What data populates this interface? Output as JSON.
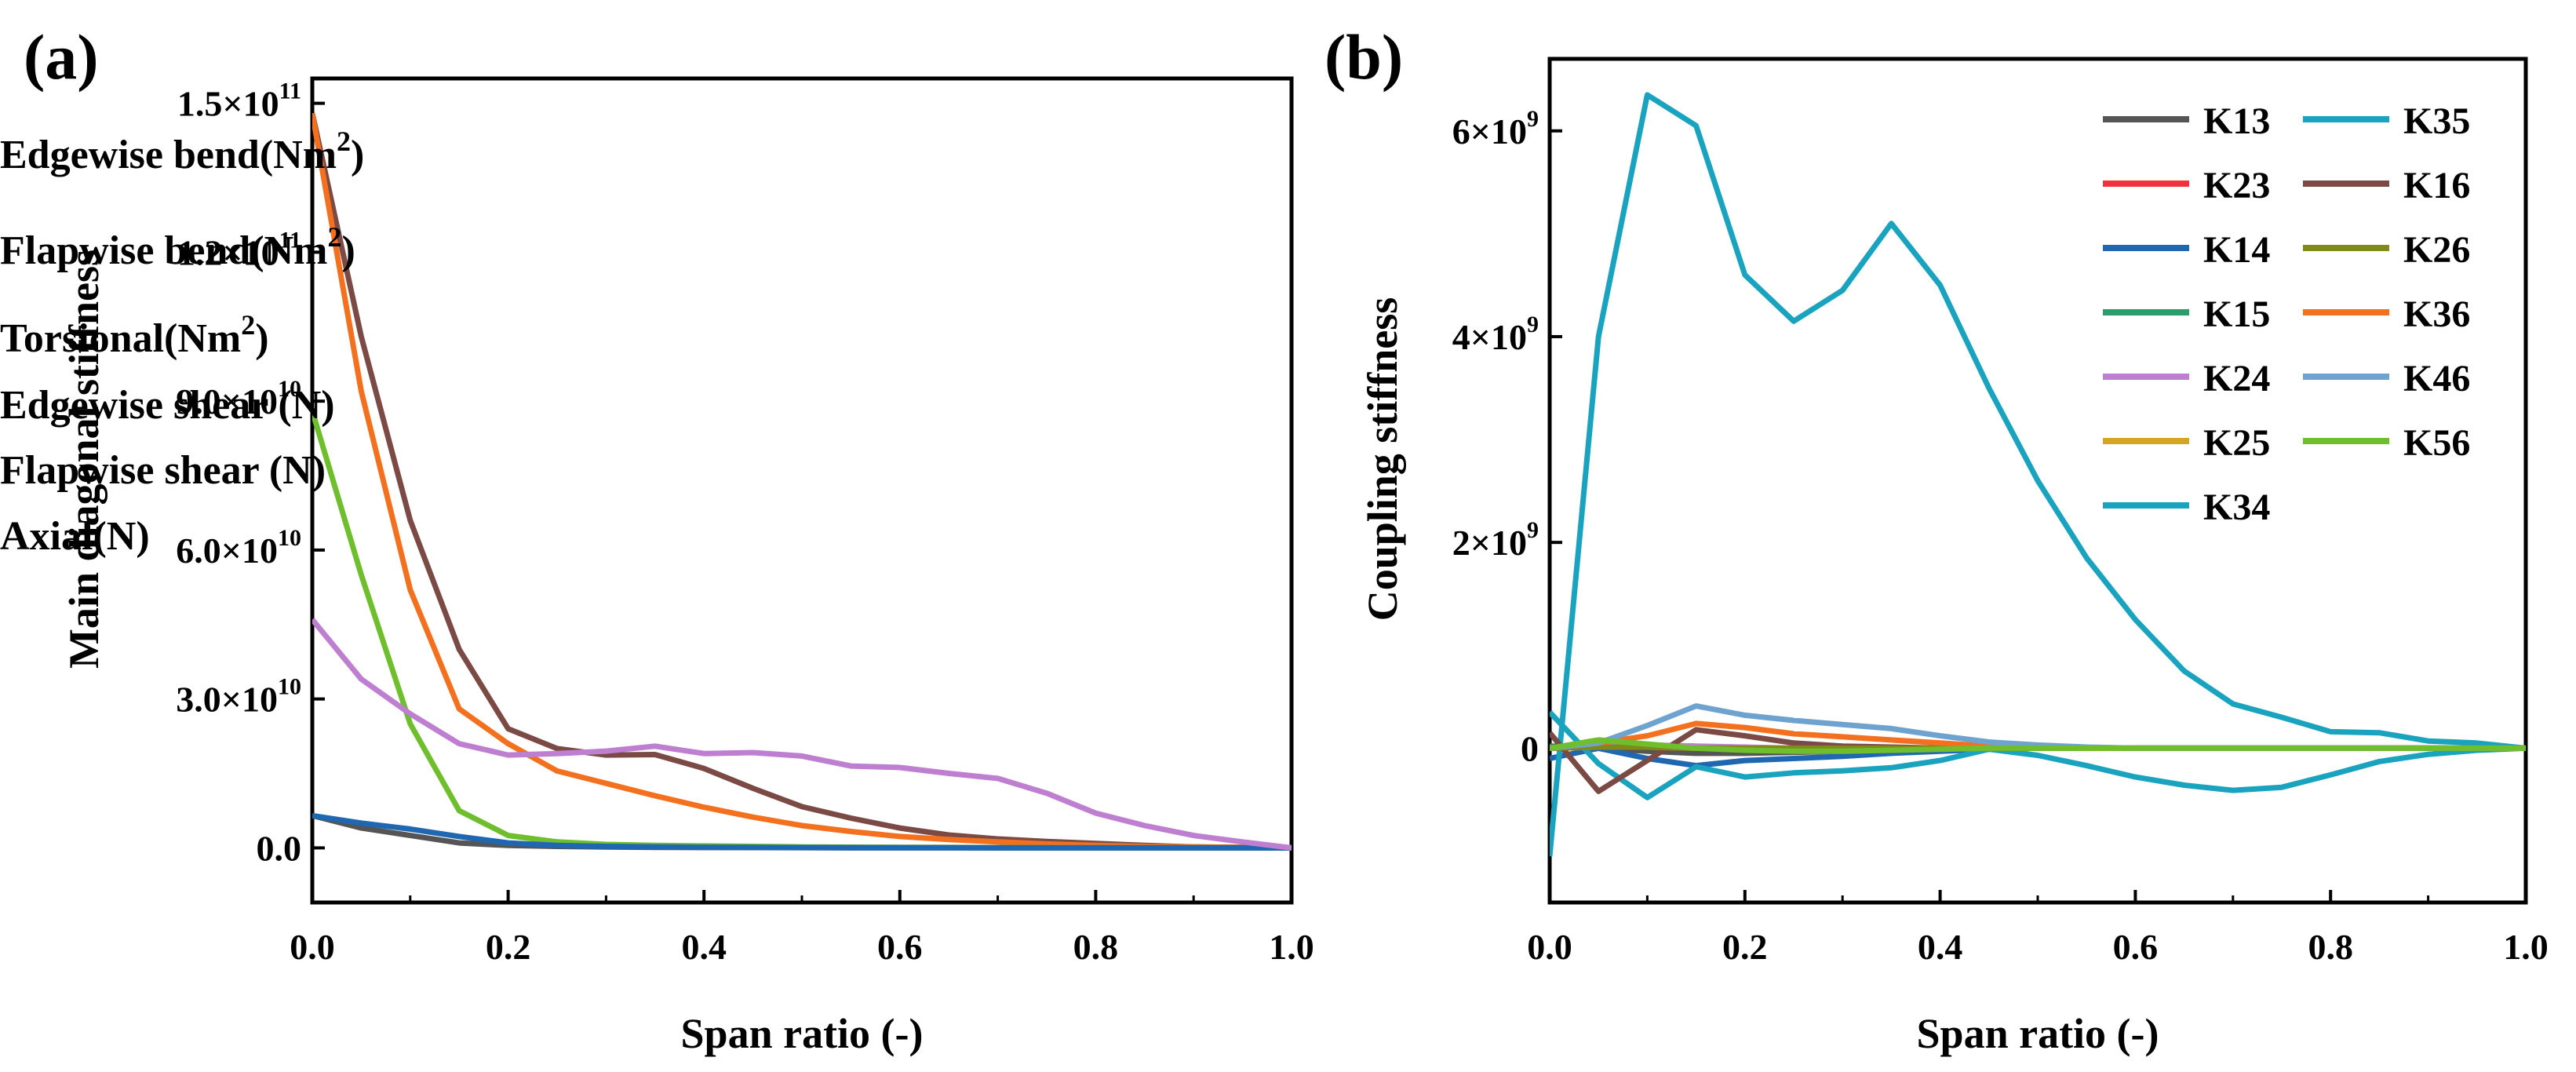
{
  "chart_data": [
    {
      "type": "line",
      "panel": "(a)",
      "xlabel": "Span ratio (-)",
      "ylabel": "Main diagonal stiffness",
      "xlim": [
        0,
        1.0
      ],
      "ylim": [
        -11000000000.0,
        155000000000.0
      ],
      "x_ticks": [
        "0.0",
        "0.2",
        "0.4",
        "0.6",
        "0.8",
        "1.0"
      ],
      "y_ticks": [
        {
          "value": 0,
          "base": "0.0",
          "exp": ""
        },
        {
          "value": 30000000000.0,
          "base": "3.0×10",
          "exp": "10"
        },
        {
          "value": 60000000000.0,
          "base": "6.0×10",
          "exp": "10"
        },
        {
          "value": 90000000000.0,
          "base": "9.0×10",
          "exp": "10"
        },
        {
          "value": 120000000000.0,
          "base": "1.2×10",
          "exp": "11"
        },
        {
          "value": 150000000000.0,
          "base": "1.5×10",
          "exp": "11"
        }
      ],
      "legend_position": "top-right",
      "x": [
        0,
        0.05,
        0.1,
        0.15,
        0.2,
        0.25,
        0.3,
        0.35,
        0.4,
        0.45,
        0.5,
        0.55,
        0.6,
        0.65,
        0.7,
        0.75,
        0.8,
        0.85,
        0.9,
        0.95,
        1.0
      ],
      "series": [
        {
          "name": "Edgewise bend(Nm",
          "sup": "2",
          "suffix": ")",
          "color": "#7b4a44",
          "values": [
            148000000000.0,
            103000000000.0,
            66000000000.0,
            40000000000.0,
            24000000000.0,
            20000000000.0,
            18700000000.0,
            18800000000.0,
            16000000000.0,
            12000000000.0,
            8300000000.0,
            6000000000.0,
            4000000000.0,
            2600000000.0,
            1800000000.0,
            1300000000.0,
            900000000.0,
            500000000.0,
            200000000.0,
            100000000.0,
            0
          ]
        },
        {
          "name": "Flapwise bend(Nm",
          "sup": "2",
          "suffix": ")",
          "color": "#f3701e",
          "values": [
            148000000000.0,
            92000000000.0,
            52000000000.0,
            28000000000.0,
            21000000000.0,
            15500000000.0,
            13000000000.0,
            10500000000.0,
            8200000000.0,
            6200000000.0,
            4500000000.0,
            3300000000.0,
            2300000000.0,
            1700000000.0,
            1200000000.0,
            800000000.0,
            500000000.0,
            300000000.0,
            200000000.0,
            100000000.0,
            0
          ]
        },
        {
          "name": "Torsional(Nm",
          "sup": "2",
          "suffix": ")",
          "color": "#6fbe2d",
          "values": [
            88000000000.0,
            55000000000.0,
            25000000000.0,
            7500000000.0,
            2500000000.0,
            1200000000.0,
            700000000.0,
            500000000.0,
            400000000.0,
            300000000.0,
            200000000.0,
            150000000.0,
            100000000.0,
            80000000.0,
            60000000.0,
            40000000.0,
            30000000.0,
            20000000.0,
            10000000.0,
            0,
            0
          ]
        },
        {
          "name": "Edgewise shear (N)",
          "sup": "",
          "suffix": "",
          "color": "#555555",
          "values": [
            6500000000.0,
            4000000000.0,
            2500000000.0,
            1000000000.0,
            500000000.0,
            300000000.0,
            200000000.0,
            100000000.0,
            80000000.0,
            60000000.0,
            50000000.0,
            40000000.0,
            30000000.0,
            20000000.0,
            10000000.0,
            0,
            0,
            0,
            0,
            0,
            0
          ]
        },
        {
          "name": "Flapwise shear (N)",
          "sup": "",
          "suffix": "",
          "color": "#1f67b1",
          "values": [
            6500000000.0,
            5000000000.0,
            3800000000.0,
            2300000000.0,
            1000000000.0,
            500000000.0,
            300000000.0,
            200000000.0,
            100000000.0,
            80000000.0,
            60000000.0,
            40000000.0,
            30000000.0,
            20000000.0,
            10000000.0,
            0,
            0,
            0,
            0,
            0,
            0
          ]
        },
        {
          "name": "Axial(N)",
          "sup": "",
          "suffix": "",
          "color": "#bf7fd0",
          "values": [
            46000000000.0,
            34000000000.0,
            27000000000.0,
            21000000000.0,
            18700000000.0,
            19000000000.0,
            19500000000.0,
            20500000000.0,
            19000000000.0,
            19200000000.0,
            18500000000.0,
            16500000000.0,
            16200000000.0,
            15000000000.0,
            14000000000.0,
            11000000000.0,
            7000000000.0,
            4500000000.0,
            2500000000.0,
            1200000000.0,
            0
          ]
        }
      ]
    },
    {
      "type": "line",
      "panel": "(b)",
      "xlabel": "Span ratio (-)",
      "ylabel": "Coupling stiffness",
      "xlim": [
        0,
        1.0
      ],
      "ylim": [
        -1500000000.0,
        6700000000.0
      ],
      "x_ticks": [
        "0.0",
        "0.2",
        "0.4",
        "0.6",
        "0.8",
        "1.0"
      ],
      "y_ticks": [
        {
          "value": 0,
          "base": "0",
          "exp": ""
        },
        {
          "value": 2000000000.0,
          "base": "2×10",
          "exp": "9"
        },
        {
          "value": 4000000000.0,
          "base": "4×10",
          "exp": "9"
        },
        {
          "value": 6000000000.0,
          "base": "6×10",
          "exp": "9"
        }
      ],
      "legend_position": "top-right",
      "x": [
        0,
        0.05,
        0.1,
        0.15,
        0.2,
        0.25,
        0.3,
        0.35,
        0.4,
        0.45,
        0.5,
        0.55,
        0.6,
        0.65,
        0.7,
        0.75,
        0.8,
        0.85,
        0.9,
        0.95,
        1.0
      ],
      "series": [
        {
          "name": "K13",
          "color": "#555555",
          "values": [
            20000000.0,
            0,
            -30000000.0,
            -50000000.0,
            -50000000.0,
            -40000000.0,
            -30000000.0,
            -20000000.0,
            -10000000.0,
            0,
            0,
            0,
            0,
            0,
            0,
            0,
            0,
            0,
            0,
            0,
            0
          ]
        },
        {
          "name": "K23",
          "color": "#f0323c",
          "values": [
            0,
            10000000.0,
            20000000.0,
            10000000.0,
            0,
            0,
            0,
            0,
            0,
            0,
            0,
            0,
            0,
            0,
            0,
            0,
            0,
            0,
            0,
            0,
            0
          ]
        },
        {
          "name": "K14",
          "color": "#1f67b1",
          "values": [
            -100000000.0,
            0,
            -100000000.0,
            -170000000.0,
            -120000000.0,
            -100000000.0,
            -80000000.0,
            -50000000.0,
            -30000000.0,
            -10000000.0,
            0,
            0,
            0,
            0,
            0,
            0,
            0,
            0,
            0,
            0,
            0
          ]
        },
        {
          "name": "K15",
          "color": "#2a9d6b",
          "values": [
            10000000.0,
            10000000.0,
            10000000.0,
            10000000.0,
            0,
            0,
            0,
            0,
            0,
            0,
            0,
            0,
            0,
            0,
            0,
            0,
            0,
            0,
            0,
            0,
            0
          ]
        },
        {
          "name": "K24",
          "color": "#bf7fd0",
          "values": [
            0,
            20000000.0,
            30000000.0,
            20000000.0,
            10000000.0,
            0,
            0,
            0,
            0,
            0,
            0,
            0,
            0,
            0,
            0,
            0,
            0,
            0,
            0,
            0,
            0
          ]
        },
        {
          "name": "K25",
          "color": "#d4a520",
          "values": [
            0,
            10000000.0,
            10000000.0,
            0,
            0,
            0,
            0,
            0,
            0,
            0,
            0,
            0,
            0,
            0,
            0,
            0,
            0,
            0,
            0,
            0,
            0
          ]
        },
        {
          "name": "K34",
          "color": "#1aa3bf",
          "values": [
            -1050000000.0,
            4000000000.0,
            6350000000.0,
            6050000000.0,
            4600000000.0,
            4150000000.0,
            4450000000.0,
            5100000000.0,
            4500000000.0,
            3500000000.0,
            2600000000.0,
            1850000000.0,
            1250000000.0,
            750000000.0,
            430000000.0,
            300000000.0,
            160000000.0,
            150000000.0,
            70000000.0,
            50000000.0,
            0
          ]
        },
        {
          "name": "K35",
          "color": "#1aa3bf",
          "values": [
            350000000.0,
            -150000000.0,
            -480000000.0,
            -180000000.0,
            -280000000.0,
            -240000000.0,
            -220000000.0,
            -190000000.0,
            -120000000.0,
            -10000000.0,
            -70000000.0,
            -170000000.0,
            -280000000.0,
            -360000000.0,
            -410000000.0,
            -380000000.0,
            -260000000.0,
            -130000000.0,
            -60000000.0,
            -20000000.0,
            0
          ]
        },
        {
          "name": "K16",
          "color": "#7b4a44",
          "values": [
            150000000.0,
            -420000000.0,
            -120000000.0,
            180000000.0,
            120000000.0,
            50000000.0,
            20000000.0,
            10000000.0,
            0,
            0,
            0,
            0,
            0,
            0,
            0,
            0,
            0,
            0,
            0,
            0,
            0
          ]
        },
        {
          "name": "K26",
          "color": "#808a19",
          "values": [
            0,
            10000000.0,
            10000000.0,
            0,
            0,
            0,
            0,
            0,
            0,
            0,
            0,
            0,
            0,
            0,
            0,
            0,
            0,
            0,
            0,
            0,
            0
          ]
        },
        {
          "name": "K36",
          "color": "#f3701e",
          "values": [
            0,
            50000000.0,
            120000000.0,
            240000000.0,
            200000000.0,
            140000000.0,
            110000000.0,
            80000000.0,
            50000000.0,
            20000000.0,
            10000000.0,
            0,
            0,
            0,
            0,
            0,
            0,
            0,
            0,
            0,
            0
          ]
        },
        {
          "name": "K46",
          "color": "#6ea3d0",
          "values": [
            0,
            50000000.0,
            220000000.0,
            410000000.0,
            320000000.0,
            270000000.0,
            230000000.0,
            190000000.0,
            120000000.0,
            60000000.0,
            30000000.0,
            10000000.0,
            0,
            0,
            0,
            0,
            0,
            0,
            0,
            0,
            0
          ]
        },
        {
          "name": "K56",
          "color": "#6fbe2d",
          "values": [
            0,
            80000000.0,
            40000000.0,
            0,
            -20000000.0,
            -30000000.0,
            -30000000.0,
            -20000000.0,
            -10000000.0,
            0,
            0,
            0,
            0,
            0,
            0,
            0,
            0,
            0,
            0,
            0,
            0
          ]
        }
      ]
    }
  ]
}
